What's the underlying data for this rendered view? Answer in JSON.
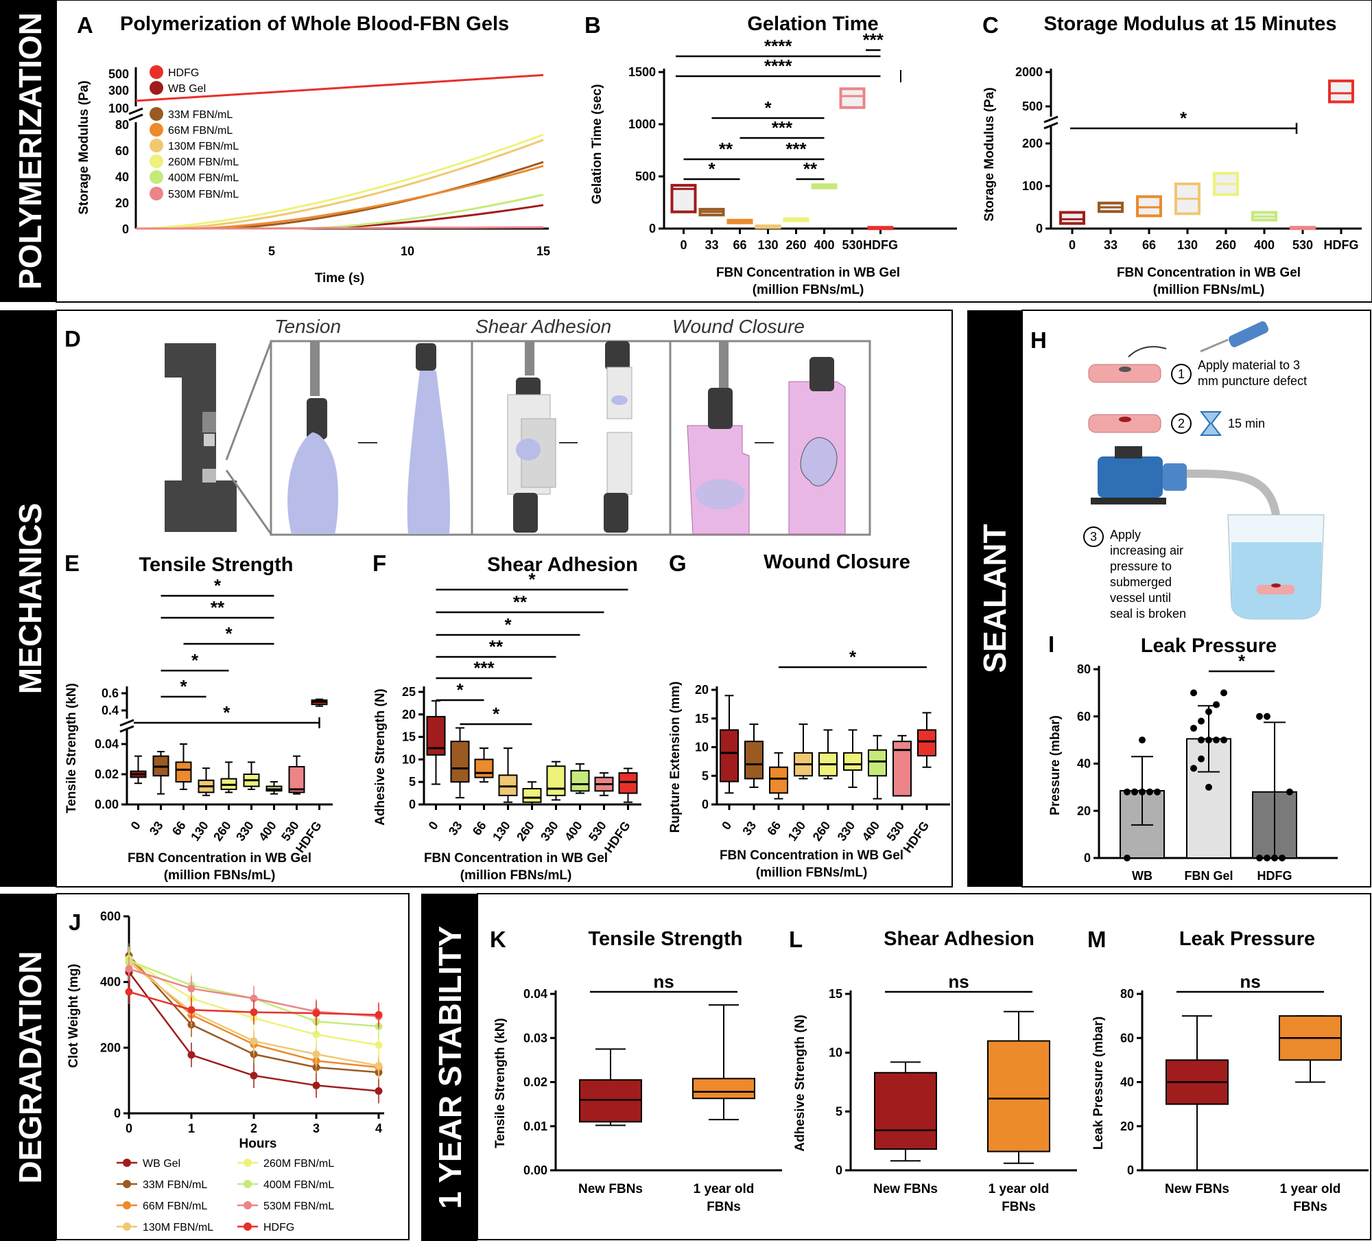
{
  "sections": {
    "polymerization": "POLYMERIZATION",
    "mechanics": "MECHANICS",
    "sealant": "SEALANT",
    "degradation": "DEGRADATION",
    "stability": "1 YEAR STABILITY"
  },
  "colors": {
    "HDFG": "#e8302a",
    "WB Gel": "#a11c1c",
    "33M": "#9a5a22",
    "66M": "#ec8a2c",
    "130M": "#f0c873",
    "260M": "#eef27a",
    "400M": "#c6ea7a",
    "530M": "#ec8488",
    "accent_box": "#e9e9e9"
  },
  "panels": {
    "A": {
      "letter": "A",
      "title": "Polymerization of Whole Blood-FBN Gels",
      "xlabel": "Time (s)",
      "ylabel": "Storage Modulus (Pa)",
      "xticks": [
        "5",
        "10",
        "15"
      ],
      "yticks_upper": [
        "500",
        "300",
        "100"
      ],
      "yticks_lower": [
        "80",
        "60",
        "40",
        "20",
        "0"
      ],
      "legend": [
        "HDFG",
        "WB Gel",
        "33M FBN/mL",
        "66M FBN/mL",
        "130M FBN/mL",
        "260M FBN/mL",
        "400M FBN/mL",
        "530M FBN/mL"
      ]
    },
    "B": {
      "letter": "B",
      "title": "Gelation Time",
      "xlabel": "FBN Concentration in WB Gel",
      "xlabel2": "(million FBNs/mL)",
      "ylabel": "Gelation Time (sec)",
      "yticks": [
        "1500",
        "1000",
        "500",
        "0"
      ],
      "stars": [
        "***",
        "****",
        "****",
        "*",
        "***",
        "**",
        "***",
        "*",
        "**"
      ]
    },
    "C": {
      "letter": "C",
      "title": "Storage Modulus at 15 Minutes",
      "xlabel": "FBN Concentration in WB Gel",
      "xlabel2": "(million FBNs/mL)",
      "ylabel": "Storage Modulus (Pa)",
      "yticks": [
        "2000",
        "500",
        "200",
        "100",
        "0"
      ],
      "stars": [
        "*"
      ]
    },
    "D": {
      "letter": "D",
      "labels": [
        "Tension",
        "Shear Adhesion",
        "Wound Closure"
      ]
    },
    "E": {
      "letter": "E",
      "title": "Tensile Strength",
      "xlabel": "FBN Concentration in WB Gel",
      "xlabel2": "(million FBNs/mL)",
      "ylabel": "Tensile Strength (kN)",
      "yticks_upper": [
        "0.6",
        "0.4"
      ],
      "yticks_lower": [
        "0.04",
        "0.02",
        "0.00"
      ],
      "stars": [
        "*",
        "**",
        "*",
        "*",
        "*",
        "*"
      ]
    },
    "F": {
      "letter": "F",
      "title": "Shear Adhesion",
      "xlabel": "FBN Concentration in WB Gel",
      "xlabel2": "(million FBNs/mL)",
      "ylabel": "Adhesive Strength (N)",
      "yticks": [
        "25",
        "20",
        "15",
        "10",
        "5",
        "0"
      ],
      "stars": [
        "*",
        "**",
        "*",
        "**",
        "***",
        "*",
        "*"
      ]
    },
    "G": {
      "letter": "G",
      "title": "Wound Closure",
      "xlabel": "FBN Concentration in WB Gel",
      "xlabel2": "(million FBNs/mL)",
      "ylabel": "Rupture Extension (mm)",
      "yticks": [
        "20",
        "15",
        "10",
        "5",
        "0"
      ],
      "stars": [
        "*"
      ]
    },
    "H": {
      "letter": "H",
      "step1_num": "1",
      "step1_line1": "Apply material to 3",
      "step1_line2": "mm puncture defect",
      "step2_num": "2",
      "step2_text": "15 min",
      "step3_num": "3",
      "step3_lines": [
        "Apply",
        "increasing air",
        "pressure to",
        "submerged",
        "vessel until",
        "seal is broken"
      ]
    },
    "I": {
      "letter": "I",
      "title": "Leak Pressure",
      "ylabel": "Pressure (mbar)",
      "yticks": [
        "80",
        "60",
        "40",
        "20",
        "0"
      ],
      "stars": [
        "*"
      ]
    },
    "J": {
      "letter": "J",
      "xlabel": "Hours",
      "ylabel": "Clot Weight (mg)",
      "yticks": [
        "600",
        "400",
        "200",
        "0"
      ],
      "xticks": [
        "0",
        "1",
        "2",
        "3",
        "4"
      ],
      "legend_left": [
        "WB Gel",
        "33M FBN/mL",
        "66M FBN/mL",
        "130M FBN/mL"
      ],
      "legend_right": [
        "260M FBN/mL",
        "400M FBN/mL",
        "530M FBN/mL",
        "HDFG"
      ]
    },
    "K": {
      "letter": "K",
      "title": "Tensile Strength",
      "ylabel": "Tensile Strength (kN)",
      "yticks": [
        "0.04",
        "0.03",
        "0.02",
        "0.01",
        "0.00"
      ],
      "ns": "ns"
    },
    "L": {
      "letter": "L",
      "title": "Shear Adhesion",
      "ylabel": "Adhesive Strength (N)",
      "yticks": [
        "15",
        "10",
        "5",
        "0"
      ],
      "ns": "ns"
    },
    "M": {
      "letter": "M",
      "title": "Leak Pressure",
      "ylabel": "Leak Pressure (mbar)",
      "yticks": [
        "80",
        "60",
        "40",
        "20",
        "0"
      ],
      "ns": "ns"
    }
  },
  "chart_data": [
    {
      "panel": "A",
      "type": "line",
      "title": "Polymerization of Whole Blood-FBN Gels",
      "xlabel": "Time (s)",
      "ylabel": "Storage Modulus (Pa)",
      "xlim": [
        0,
        15
      ],
      "x": [
        0,
        15
      ],
      "series": [
        {
          "name": "HDFG",
          "values": [
            150,
            480
          ]
        },
        {
          "name": "WB Gel",
          "values": [
            0,
            18
          ]
        },
        {
          "name": "33M FBN/mL",
          "values": [
            0,
            51
          ]
        },
        {
          "name": "66M FBN/mL",
          "values": [
            0,
            48
          ]
        },
        {
          "name": "130M FBN/mL",
          "values": [
            0,
            68
          ]
        },
        {
          "name": "260M FBN/mL",
          "values": [
            0,
            72
          ]
        },
        {
          "name": "400M FBN/mL",
          "values": [
            0,
            26
          ]
        },
        {
          "name": "530M FBN/mL",
          "values": [
            0,
            1
          ]
        }
      ]
    },
    {
      "panel": "B",
      "type": "box",
      "title": "Gelation Time",
      "ylabel": "Gelation Time (sec)",
      "ylim": [
        0,
        1500
      ],
      "categories": [
        "0",
        "33",
        "66",
        "130",
        "260",
        "400",
        "530",
        "HDFG"
      ],
      "boxes": [
        {
          "q1": 160,
          "median": 380,
          "q3": 415
        },
        {
          "q1": 130,
          "median": 160,
          "q3": 185
        },
        {
          "q1": 55,
          "median": 65,
          "q3": 80
        },
        {
          "q1": 10,
          "median": 18,
          "q3": 26
        },
        {
          "q1": 75,
          "median": 85,
          "q3": 95
        },
        {
          "q1": 390,
          "median": 405,
          "q3": 420
        },
        {
          "q1": 1160,
          "median": 1270,
          "q3": 1340
        },
        {
          "q1": 5,
          "median": 8,
          "q3": 12
        }
      ]
    },
    {
      "panel": "C",
      "type": "box",
      "title": "Storage Modulus at 15 Minutes",
      "ylabel": "Storage Modulus (Pa)",
      "categories": [
        "0",
        "33",
        "66",
        "130",
        "260",
        "400",
        "530",
        "HDFG"
      ],
      "boxes": [
        {
          "q1": 12,
          "median": 22,
          "q3": 38
        },
        {
          "q1": 40,
          "median": 50,
          "q3": 60
        },
        {
          "q1": 30,
          "median": 50,
          "q3": 75
        },
        {
          "q1": 35,
          "median": 70,
          "q3": 105
        },
        {
          "q1": 80,
          "median": 105,
          "q3": 130
        },
        {
          "q1": 20,
          "median": 28,
          "q3": 38
        },
        {
          "q1": 1,
          "median": 2,
          "q3": 3
        },
        {
          "q1": 600,
          "median": 850,
          "q3": 1400
        }
      ]
    },
    {
      "panel": "E",
      "type": "box",
      "title": "Tensile Strength",
      "ylabel": "Tensile Strength (kN)",
      "categories": [
        "0",
        "33",
        "66",
        "130",
        "260",
        "330",
        "400",
        "530",
        "HDFG"
      ],
      "boxes": [
        {
          "min": 0.014,
          "q1": 0.018,
          "median": 0.02,
          "q3": 0.022,
          "max": 0.032
        },
        {
          "min": 0.007,
          "q1": 0.019,
          "median": 0.025,
          "q3": 0.032,
          "max": 0.035
        },
        {
          "min": 0.01,
          "q1": 0.015,
          "median": 0.023,
          "q3": 0.028,
          "max": 0.04
        },
        {
          "min": 0.006,
          "q1": 0.008,
          "median": 0.012,
          "q3": 0.016,
          "max": 0.024
        },
        {
          "min": 0.008,
          "q1": 0.01,
          "median": 0.013,
          "q3": 0.017,
          "max": 0.028
        },
        {
          "min": 0.01,
          "q1": 0.012,
          "median": 0.016,
          "q3": 0.02,
          "max": 0.028
        },
        {
          "min": 0.007,
          "q1": 0.009,
          "median": 0.01,
          "q3": 0.012,
          "max": 0.015
        },
        {
          "min": 0.007,
          "q1": 0.008,
          "median": 0.01,
          "q3": 0.025,
          "max": 0.032
        },
        {
          "min": 0.45,
          "q1": 0.47,
          "median": 0.5,
          "q3": 0.52,
          "max": 0.53
        }
      ]
    },
    {
      "panel": "F",
      "type": "box",
      "title": "Shear Adhesion",
      "ylabel": "Adhesive Strength (N)",
      "ylim": [
        0,
        25
      ],
      "categories": [
        "0",
        "33",
        "66",
        "130",
        "260",
        "330",
        "400",
        "530",
        "HDFG"
      ],
      "boxes": [
        {
          "min": 4.5,
          "q1": 11,
          "median": 12.5,
          "q3": 19.5,
          "max": 23
        },
        {
          "min": 1.5,
          "q1": 5,
          "median": 8,
          "q3": 14,
          "max": 17
        },
        {
          "min": 5,
          "q1": 6,
          "median": 7,
          "q3": 10,
          "max": 12.5
        },
        {
          "min": 0.5,
          "q1": 2,
          "median": 4,
          "q3": 6.5,
          "max": 12.5
        },
        {
          "min": 0,
          "q1": 0.5,
          "median": 1.5,
          "q3": 3.5,
          "max": 5
        },
        {
          "min": 1,
          "q1": 2,
          "median": 3.5,
          "q3": 8.5,
          "max": 9.5
        },
        {
          "min": 2.5,
          "q1": 3,
          "median": 4.5,
          "q3": 7.5,
          "max": 9
        },
        {
          "min": 2,
          "q1": 3,
          "median": 4.5,
          "q3": 6,
          "max": 7
        },
        {
          "min": 0.5,
          "q1": 2.5,
          "median": 5,
          "q3": 7,
          "max": 8
        }
      ]
    },
    {
      "panel": "G",
      "type": "box",
      "title": "Wound Closure",
      "ylabel": "Rupture Extension (mm)",
      "ylim": [
        0,
        20
      ],
      "categories": [
        "0",
        "33",
        "66",
        "130",
        "260",
        "330",
        "400",
        "530",
        "HDFG"
      ],
      "boxes": [
        {
          "min": 2,
          "q1": 4,
          "median": 9,
          "q3": 13,
          "max": 19
        },
        {
          "min": 3,
          "q1": 4.5,
          "median": 7,
          "q3": 11,
          "max": 14
        },
        {
          "min": 1,
          "q1": 2,
          "median": 4.5,
          "q3": 6.5,
          "max": 9
        },
        {
          "min": 4.5,
          "q1": 5,
          "median": 7,
          "q3": 9,
          "max": 14
        },
        {
          "min": 4.5,
          "q1": 5,
          "median": 7,
          "q3": 9,
          "max": 13
        },
        {
          "min": 3,
          "q1": 6,
          "median": 7,
          "q3": 9,
          "max": 13
        },
        {
          "min": 1,
          "q1": 5,
          "median": 7.5,
          "q3": 9.5,
          "max": 12
        },
        {
          "min": 1.5,
          "q1": 1.5,
          "median": 9.5,
          "q3": 11,
          "max": 12
        },
        {
          "min": 6.5,
          "q1": 8.5,
          "median": 11,
          "q3": 13,
          "max": 16
        }
      ]
    },
    {
      "panel": "I",
      "type": "bar",
      "title": "Leak Pressure",
      "ylabel": "Pressure (mbar)",
      "ylim": [
        0,
        80
      ],
      "categories": [
        "WB",
        "FBN Gel",
        "HDFG"
      ],
      "values": [
        28.5,
        50.5,
        28
      ],
      "errors": [
        14.5,
        14,
        29.5
      ],
      "points": [
        [
          0,
          28,
          28,
          28,
          28,
          28,
          28,
          50
        ],
        [
          38,
          42,
          50,
          50,
          50,
          55,
          58,
          62,
          65,
          70,
          70,
          50,
          30
        ],
        [
          0,
          0,
          0,
          0,
          28,
          60,
          60
        ]
      ]
    },
    {
      "panel": "J",
      "type": "line",
      "xlabel": "Hours",
      "ylabel": "Clot Weight (mg)",
      "ylim": [
        0,
        600
      ],
      "x": [
        0,
        1,
        2,
        3,
        4
      ],
      "series": [
        {
          "name": "WB Gel",
          "values": [
            430,
            178,
            115,
            85,
            68
          ]
        },
        {
          "name": "33M FBN/mL",
          "values": [
            480,
            270,
            180,
            140,
            125
          ]
        },
        {
          "name": "66M FBN/mL",
          "values": [
            470,
            300,
            210,
            160,
            140
          ]
        },
        {
          "name": "130M FBN/mL",
          "values": [
            460,
            310,
            220,
            180,
            145
          ]
        },
        {
          "name": "260M FBN/mL",
          "values": [
            470,
            350,
            290,
            240,
            208
          ]
        },
        {
          "name": "400M FBN/mL",
          "values": [
            465,
            390,
            350,
            280,
            265
          ]
        },
        {
          "name": "530M FBN/mL",
          "values": [
            440,
            380,
            350,
            310,
            295
          ]
        },
        {
          "name": "HDFG",
          "values": [
            370,
            315,
            308,
            305,
            300
          ]
        }
      ]
    },
    {
      "panel": "K",
      "type": "box",
      "title": "Tensile Strength",
      "ylabel": "Tensile Strength (kN)",
      "ylim": [
        0,
        0.04
      ],
      "categories": [
        "New FBNs",
        "1 year old FBNs"
      ],
      "boxes": [
        {
          "min": 0.0102,
          "q1": 0.011,
          "median": 0.016,
          "q3": 0.0205,
          "max": 0.0275
        },
        {
          "min": 0.0115,
          "q1": 0.0163,
          "median": 0.0178,
          "q3": 0.0208,
          "max": 0.0375
        }
      ]
    },
    {
      "panel": "L",
      "type": "box",
      "title": "Shear Adhesion",
      "ylabel": "Adhesive Strength (N)",
      "ylim": [
        0,
        15
      ],
      "categories": [
        "New FBNs",
        "1 year old FBNs"
      ],
      "boxes": [
        {
          "min": 0.8,
          "q1": 1.8,
          "median": 3.4,
          "q3": 8.3,
          "max": 9.2
        },
        {
          "min": 0.6,
          "q1": 1.6,
          "median": 6.1,
          "q3": 11.0,
          "max": 13.5
        }
      ]
    },
    {
      "panel": "M",
      "type": "box",
      "title": "Leak Pressure",
      "ylabel": "Leak Pressure (mbar)",
      "ylim": [
        0,
        80
      ],
      "categories": [
        "New FBNs",
        "1 year old FBNs"
      ],
      "boxes": [
        {
          "min": 0,
          "q1": 30,
          "median": 40,
          "q3": 50,
          "max": 70
        },
        {
          "min": 40,
          "q1": 50,
          "median": 60,
          "q3": 70,
          "max": 70
        }
      ]
    }
  ]
}
